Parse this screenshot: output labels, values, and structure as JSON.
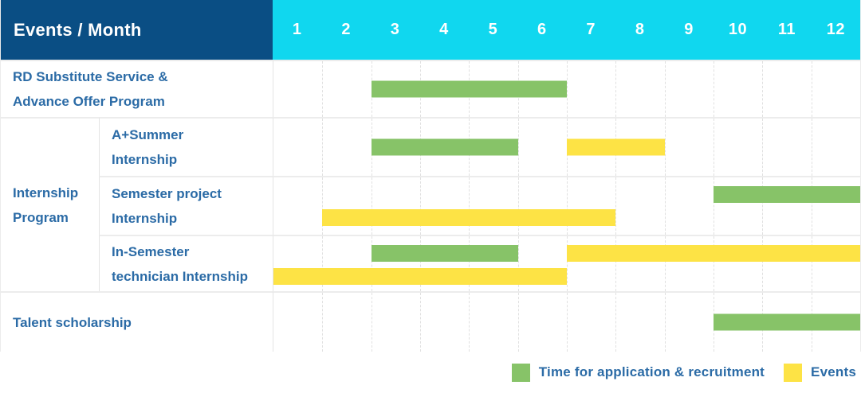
{
  "title_cell": "Events / Month",
  "months": [
    "1",
    "2",
    "3",
    "4",
    "5",
    "6",
    "7",
    "8",
    "9",
    "10",
    "11",
    "12"
  ],
  "internship_group_label": "Internship Program",
  "legend": {
    "application": "Time for application & recruitment",
    "events": "Events"
  },
  "colors": {
    "header_navy": "#0a4e84",
    "header_cyan": "#10d7ef",
    "application_green": "#87c368",
    "event_yellow": "#fde345",
    "label_blue": "#2b6ba6"
  },
  "chart_data": {
    "type": "gantt",
    "title": "Events / Month",
    "x_axis_label": "Month",
    "x_range": [
      1,
      12
    ],
    "x_ticks": [
      1,
      2,
      3,
      4,
      5,
      6,
      7,
      8,
      9,
      10,
      11,
      12
    ],
    "grid": true,
    "legend_position": "bottom-right",
    "legend": [
      {
        "kind": "application",
        "label": "Time for application & recruitment",
        "color": "#87c368"
      },
      {
        "kind": "event",
        "label": "Events",
        "color": "#fde345"
      }
    ],
    "rows": [
      {
        "label": "RD Substitute Service & Advance Offer Program",
        "label_lines": [
          "RD Substitute Service &",
          "Advance Offer Program"
        ],
        "group": null,
        "bars": [
          {
            "kind": "application",
            "start_month": 3,
            "end_month": 6,
            "lane": "center"
          }
        ]
      },
      {
        "label": "A+Summer Internship",
        "label_lines": [
          "A+Summer",
          "Internship"
        ],
        "group": "Internship Program",
        "bars": [
          {
            "kind": "application",
            "start_month": 3,
            "end_month": 5,
            "lane": "center"
          },
          {
            "kind": "event",
            "start_month": 7,
            "end_month": 8,
            "lane": "center"
          }
        ]
      },
      {
        "label": "Semester project Internship",
        "label_lines": [
          "Semester project",
          "Internship"
        ],
        "group": "Internship Program",
        "bars": [
          {
            "kind": "application",
            "start_month": 10,
            "end_month": 12,
            "lane": "top"
          },
          {
            "kind": "event",
            "start_month": 2,
            "end_month": 7,
            "lane": "bottom"
          }
        ]
      },
      {
        "label": "In-Semester technician Internship",
        "label_lines": [
          "In-Semester",
          "technician Internship"
        ],
        "group": "Internship Program",
        "bars": [
          {
            "kind": "application",
            "start_month": 3,
            "end_month": 5,
            "lane": "top"
          },
          {
            "kind": "event",
            "start_month": 7,
            "end_month": 12,
            "lane": "top"
          },
          {
            "kind": "event",
            "start_month": 1,
            "end_month": 6,
            "lane": "bottom"
          }
        ]
      },
      {
        "label": "Talent scholarship",
        "label_lines": [
          "Talent scholarship"
        ],
        "group": null,
        "bars": [
          {
            "kind": "application",
            "start_month": 10,
            "end_month": 12,
            "lane": "center"
          }
        ]
      }
    ]
  }
}
